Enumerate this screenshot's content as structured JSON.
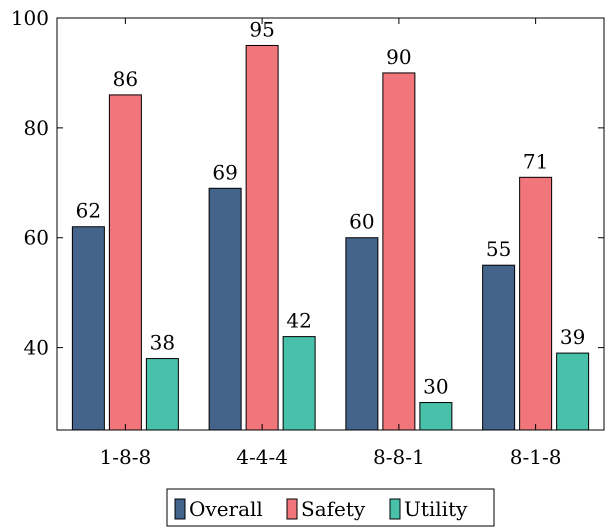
{
  "chart_data": {
    "type": "bar",
    "title": "",
    "xlabel": "",
    "ylabel": "",
    "categories": [
      "1-8-8",
      "4-4-4",
      "8-8-1",
      "8-1-8"
    ],
    "series": [
      {
        "name": "Overall",
        "values": [
          62,
          69,
          60,
          55
        ],
        "color": "#44648c"
      },
      {
        "name": "Safety",
        "values": [
          86,
          95,
          90,
          71
        ],
        "color": "#f0767c"
      },
      {
        "name": "Utility",
        "values": [
          38,
          42,
          30,
          39
        ],
        "color": "#49c1aa"
      }
    ],
    "ylim": [
      25,
      100
    ],
    "yticks": [
      40,
      60,
      80,
      100
    ],
    "data_labels": true,
    "grid": false,
    "legend_position": "bottom-center"
  }
}
